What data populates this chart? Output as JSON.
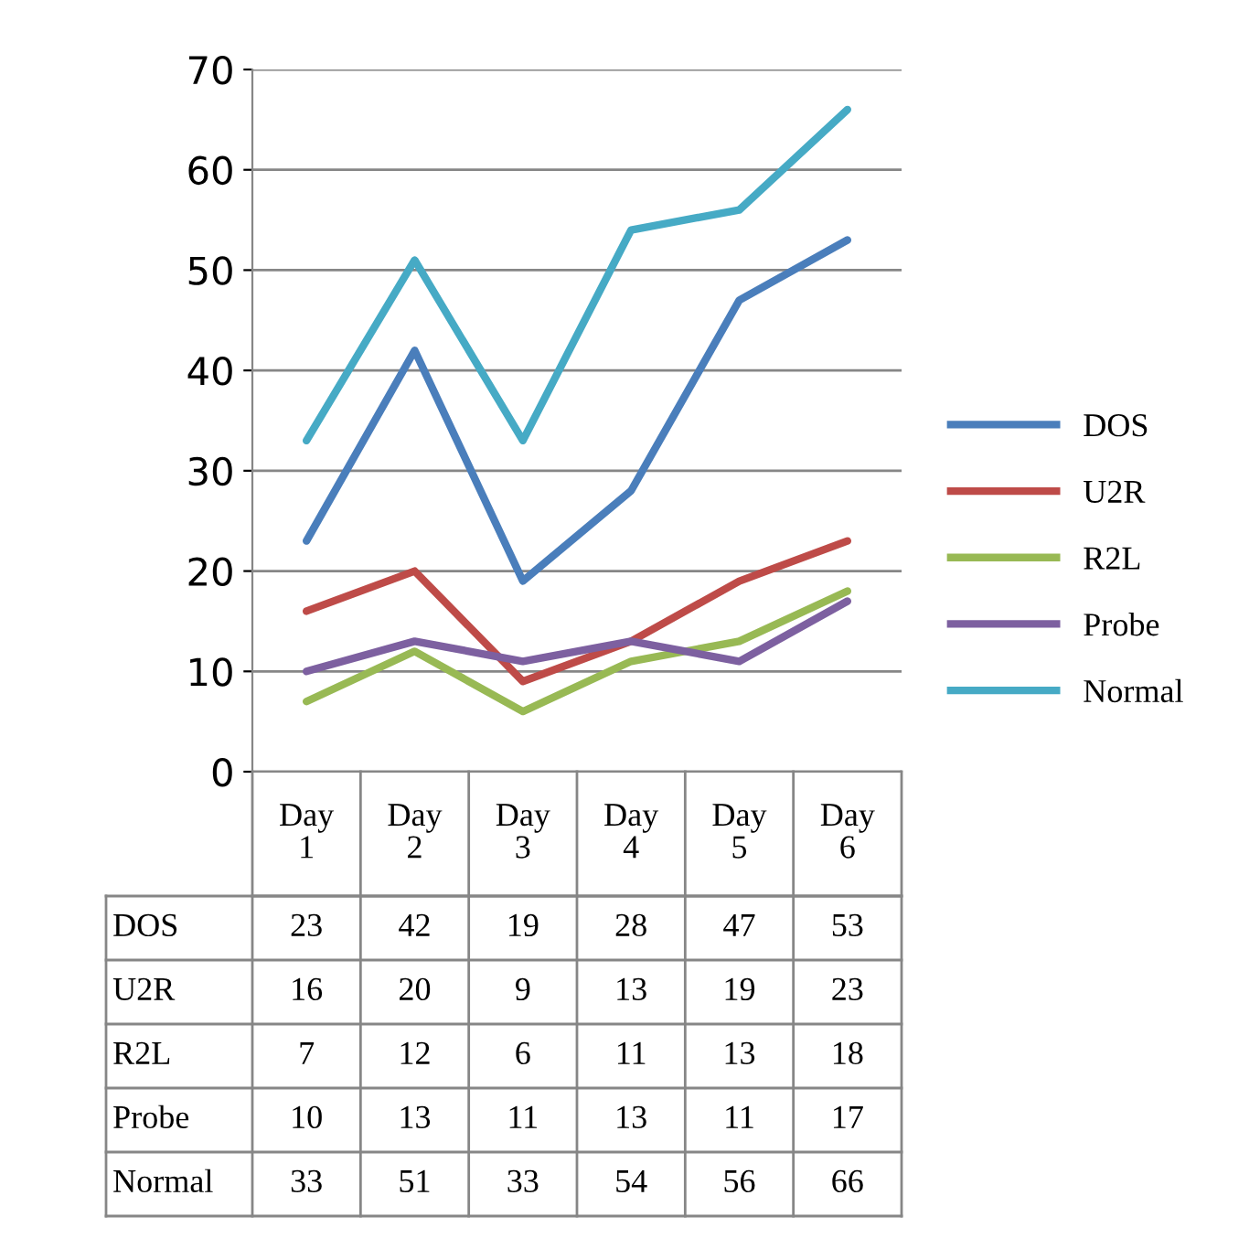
{
  "chart_data": {
    "type": "line",
    "categories": [
      "Day 1",
      "Day 2",
      "Day 3",
      "Day 4",
      "Day 5",
      "Day 6"
    ],
    "series": [
      {
        "name": "DOS",
        "color": "#4a7ebb",
        "values": [
          23,
          42,
          19,
          28,
          47,
          53
        ]
      },
      {
        "name": "U2R",
        "color": "#be4b48",
        "values": [
          16,
          20,
          9,
          13,
          19,
          23
        ]
      },
      {
        "name": "R2L",
        "color": "#98b954",
        "values": [
          7,
          12,
          6,
          11,
          13,
          18
        ]
      },
      {
        "name": "Probe",
        "color": "#7d60a0",
        "values": [
          10,
          13,
          11,
          13,
          11,
          17
        ]
      },
      {
        "name": "Normal",
        "color": "#46aac5",
        "values": [
          33,
          51,
          33,
          54,
          56,
          66
        ]
      }
    ],
    "ylim": [
      0,
      70
    ],
    "yticks": [
      0,
      10,
      20,
      30,
      40,
      50,
      60,
      70
    ],
    "grid": "y",
    "legend": "right",
    "data_labels": true
  }
}
